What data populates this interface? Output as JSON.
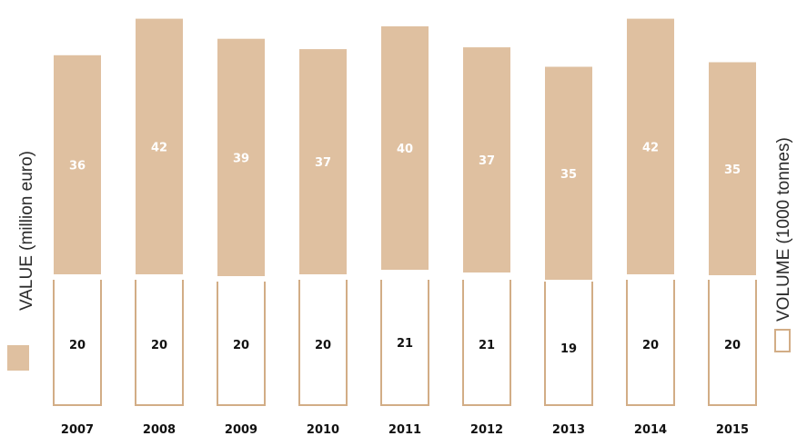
{
  "chart_data": {
    "type": "bar",
    "categories": [
      "2007",
      "2008",
      "2009",
      "2010",
      "2011",
      "2012",
      "2013",
      "2014",
      "2015"
    ],
    "series": [
      {
        "name": "VALUE (million euro)",
        "values": [
          36,
          42,
          39,
          37,
          40,
          37,
          35,
          42,
          35
        ],
        "color": "#dfc0a0",
        "style": "filled"
      },
      {
        "name": "VOLUME (1000 tonnes)",
        "values": [
          20,
          20,
          20,
          20,
          21,
          21,
          19,
          20,
          20
        ],
        "color": "#dfc0a0",
        "style": "outline"
      }
    ],
    "legend": {
      "value_label": "VALUE (million euro)",
      "volume_label": "VOLUME (1000 tonnes)",
      "placement": "left and right, vertical"
    },
    "colors": {
      "bar_fill": "#dfc0a0",
      "bar_outline": "#d2ad86",
      "value_text": "#ffffff",
      "volume_text": "#111111"
    },
    "grid": false
  }
}
